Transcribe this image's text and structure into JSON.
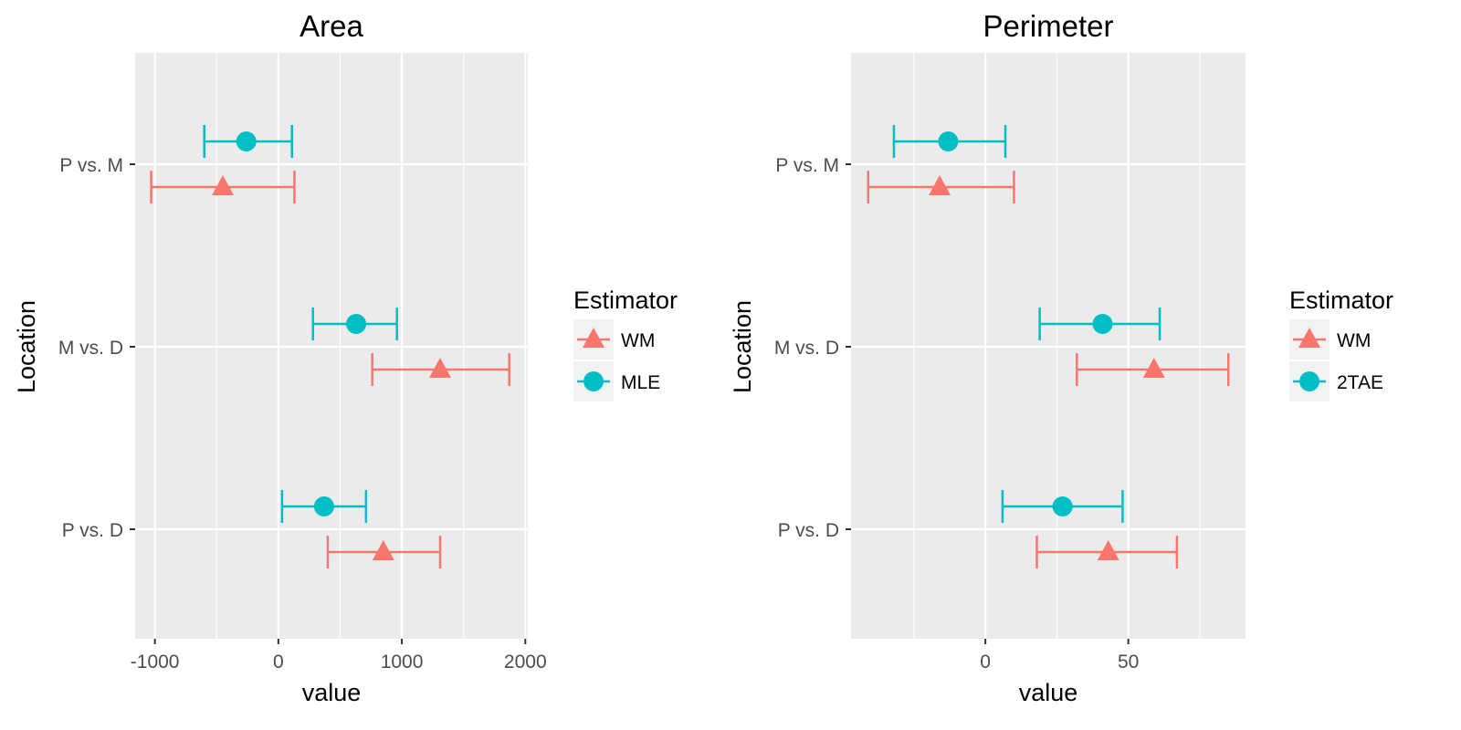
{
  "chart_data": [
    {
      "type": "errorbar",
      "title": "Area",
      "xlabel": "value",
      "ylabel": "Location",
      "xlim": [
        -1160,
        2020
      ],
      "x_ticks": [
        -1000,
        0,
        1000,
        2000
      ],
      "x_tick_labels": [
        "-1000",
        "0",
        "1000",
        "2000"
      ],
      "categories": [
        "P vs. M",
        "M vs. D",
        "P vs. D"
      ],
      "grid": true,
      "legend": {
        "title": "Estimator",
        "position": "right"
      },
      "series": [
        {
          "name": "WM",
          "color": "#F8766D",
          "marker": "triangle",
          "points": [
            {
              "category": "P vs. M",
              "estimate": -450,
              "lower": -1030,
              "upper": 130
            },
            {
              "category": "M vs. D",
              "estimate": 1310,
              "lower": 760,
              "upper": 1870
            },
            {
              "category": "P vs. D",
              "estimate": 850,
              "lower": 400,
              "upper": 1310
            }
          ]
        },
        {
          "name": "MLE",
          "color": "#00BFC4",
          "marker": "circle",
          "points": [
            {
              "category": "P vs. M",
              "estimate": -260,
              "lower": -600,
              "upper": 110
            },
            {
              "category": "M vs. D",
              "estimate": 630,
              "lower": 280,
              "upper": 960
            },
            {
              "category": "P vs. D",
              "estimate": 370,
              "lower": 30,
              "upper": 710
            }
          ]
        }
      ]
    },
    {
      "type": "errorbar",
      "title": "Perimeter",
      "xlabel": "value",
      "ylabel": "Location",
      "xlim": [
        -47,
        91
      ],
      "x_ticks": [
        0,
        50
      ],
      "x_tick_labels": [
        "0",
        "50"
      ],
      "categories": [
        "P vs. M",
        "M vs. D",
        "P vs. D"
      ],
      "grid": true,
      "legend": {
        "title": "Estimator",
        "position": "right"
      },
      "series": [
        {
          "name": "WM",
          "color": "#F8766D",
          "marker": "triangle",
          "points": [
            {
              "category": "P vs. M",
              "estimate": -16,
              "lower": -41,
              "upper": 10
            },
            {
              "category": "M vs. D",
              "estimate": 59,
              "lower": 32,
              "upper": 85
            },
            {
              "category": "P vs. D",
              "estimate": 43,
              "lower": 18,
              "upper": 67
            }
          ]
        },
        {
          "name": "2TAE",
          "color": "#00BFC4",
          "marker": "circle",
          "points": [
            {
              "category": "P vs. M",
              "estimate": -13,
              "lower": -32,
              "upper": 7
            },
            {
              "category": "M vs. D",
              "estimate": 41,
              "lower": 19,
              "upper": 61
            },
            {
              "category": "P vs. D",
              "estimate": 27,
              "lower": 6,
              "upper": 48
            }
          ]
        }
      ]
    }
  ]
}
